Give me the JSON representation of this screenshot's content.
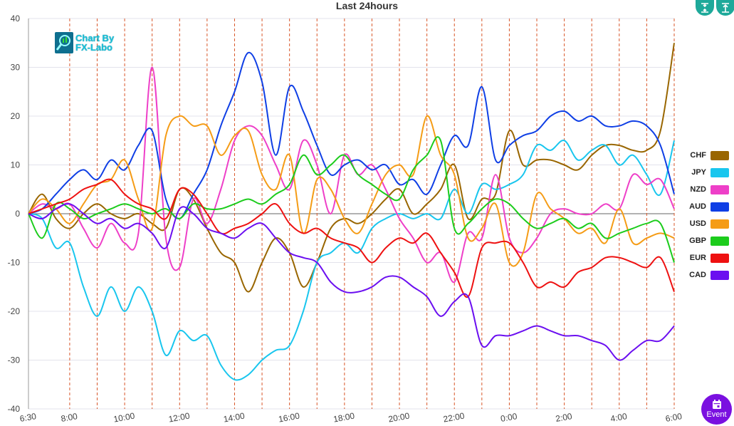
{
  "chart_data": {
    "type": "line",
    "title": "Last 24hours",
    "ylim": [
      -40,
      40
    ],
    "yticks": [
      40,
      30,
      20,
      10,
      0,
      -10,
      -20,
      -30,
      -40
    ],
    "xlim": [
      0,
      23.5
    ],
    "xticks": [
      {
        "x": 0,
        "label": "6:30"
      },
      {
        "x": 1.5,
        "label": "8:00"
      },
      {
        "x": 3.5,
        "label": "10:00"
      },
      {
        "x": 5.5,
        "label": "12:00"
      },
      {
        "x": 7.5,
        "label": "14:00"
      },
      {
        "x": 9.5,
        "label": "16:00"
      },
      {
        "x": 11.5,
        "label": "18:00"
      },
      {
        "x": 13.5,
        "label": "20:00"
      },
      {
        "x": 15.5,
        "label": "22:00"
      },
      {
        "x": 17.5,
        "label": "0:00"
      },
      {
        "x": 19.5,
        "label": "2:00"
      },
      {
        "x": 21.5,
        "label": "4:00"
      },
      {
        "x": 23.5,
        "label": "6:00"
      }
    ],
    "vlines": [
      1.5,
      2.5,
      3.5,
      4.5,
      5.5,
      6.5,
      7.5,
      8.5,
      9.5,
      10.5,
      11.5,
      12.5,
      13.5,
      14.5,
      15.5,
      16.5,
      17.5,
      18.5,
      19.5,
      20.5,
      21.5,
      22.5,
      23.5
    ],
    "grid": true,
    "legend_position": "right",
    "series": [
      {
        "name": "CHF",
        "color": "#996600",
        "x": [
          0,
          0.5,
          1,
          1.5,
          2,
          2.5,
          3,
          3.5,
          4,
          4.5,
          5,
          5.5,
          6,
          6.5,
          7,
          7.5,
          8,
          8.5,
          9,
          9.5,
          10,
          10.5,
          11,
          11.5,
          12,
          12.5,
          13,
          13.5,
          14,
          14.5,
          15,
          15.5,
          16,
          16.5,
          17,
          17.5,
          18,
          18.5,
          19,
          19.5,
          20,
          20.5,
          21,
          21.5,
          22,
          22.5,
          23,
          23.5
        ],
        "y": [
          0,
          4,
          -1,
          -3,
          0,
          2,
          0,
          -1,
          0,
          -2,
          -3,
          5,
          3,
          -3,
          -8,
          -10,
          -16,
          -10,
          -5,
          -8,
          -15,
          -10,
          -3,
          -1,
          -2,
          0,
          3,
          5,
          0,
          2,
          5,
          10,
          -1,
          3,
          4,
          17,
          10,
          11,
          11,
          10,
          9,
          12,
          14,
          14,
          13,
          13,
          17,
          35
        ]
      },
      {
        "name": "JPY",
        "color": "#19c6ee",
        "x": [
          0,
          0.5,
          1,
          1.5,
          2,
          2.5,
          3,
          3.5,
          4,
          4.5,
          5,
          5.5,
          6,
          6.5,
          7,
          7.5,
          8,
          8.5,
          9,
          9.5,
          10,
          10.5,
          11,
          11.5,
          12,
          12.5,
          13,
          13.5,
          14,
          14.5,
          15,
          15.5,
          16,
          16.5,
          17,
          17.5,
          18,
          18.5,
          19,
          19.5,
          20,
          20.5,
          21,
          21.5,
          22,
          22.5,
          23,
          23.5
        ],
        "y": [
          0,
          -1,
          -7,
          -6,
          -15,
          -21,
          -15,
          -20,
          -15,
          -20,
          -29,
          -24,
          -26,
          -25,
          -31,
          -34,
          -33,
          -30,
          -28,
          -27,
          -20,
          -10,
          -8,
          -6,
          -8,
          -3,
          -1,
          0,
          -1,
          0,
          -1,
          5,
          0,
          6,
          5,
          6,
          8,
          14,
          13,
          15,
          11,
          13,
          14,
          10,
          12,
          8,
          4,
          15
        ]
      },
      {
        "name": "NZD",
        "color": "#ee3fc8",
        "x": [
          0,
          0.5,
          1,
          1.5,
          2,
          2.5,
          3,
          3.5,
          4,
          4.5,
          5,
          5.5,
          6,
          6.5,
          7,
          7.5,
          8,
          8.5,
          9,
          9.5,
          10,
          10.5,
          11,
          11.5,
          12,
          12.5,
          13,
          13.5,
          14,
          14.5,
          15,
          15.5,
          16,
          16.5,
          17,
          17.5,
          18,
          18.5,
          19,
          19.5,
          20,
          20.5,
          21,
          21.5,
          22,
          22.5,
          23,
          23.5
        ],
        "y": [
          0,
          2,
          1,
          2,
          -3,
          -7,
          -2,
          -6,
          -4,
          30,
          -5,
          -11,
          3,
          -2,
          5,
          15,
          18,
          16,
          10,
          5,
          15,
          10,
          0,
          12,
          8,
          10,
          5,
          -1,
          -5,
          -10,
          -8,
          -14,
          -4,
          -5,
          8,
          -5,
          -8,
          -5,
          0,
          1,
          0,
          0,
          2,
          1,
          8,
          6,
          7,
          1
        ]
      },
      {
        "name": "AUD",
        "color": "#0f3fe5",
        "x": [
          0,
          0.5,
          1,
          1.5,
          2,
          2.5,
          3,
          3.5,
          4,
          4.5,
          5,
          5.5,
          6,
          6.5,
          7,
          7.5,
          8,
          8.5,
          9,
          9.5,
          10,
          10.5,
          11,
          11.5,
          12,
          12.5,
          13,
          13.5,
          14,
          14.5,
          15,
          15.5,
          16,
          16.5,
          17,
          17.5,
          18,
          18.5,
          19,
          19.5,
          20,
          20.5,
          21,
          21.5,
          22,
          22.5,
          23,
          23.5
        ],
        "y": [
          0,
          1,
          4,
          7,
          9,
          7,
          11,
          9,
          14,
          17,
          3,
          -1,
          4,
          9,
          18,
          25,
          33,
          27,
          12,
          26,
          21,
          14,
          8,
          10,
          11,
          9,
          10,
          6,
          7,
          4,
          10,
          16,
          14,
          26,
          11,
          14,
          16,
          17,
          20,
          21,
          19,
          20,
          18,
          18,
          19,
          18,
          14,
          4
        ]
      },
      {
        "name": "USD",
        "color": "#f59c16",
        "x": [
          0,
          0.5,
          1,
          1.5,
          2,
          2.5,
          3,
          3.5,
          4,
          4.5,
          5,
          5.5,
          6,
          6.5,
          7,
          7.5,
          8,
          8.5,
          9,
          9.5,
          10,
          10.5,
          11,
          11.5,
          12,
          12.5,
          13,
          13.5,
          14,
          14.5,
          15,
          15.5,
          16,
          16.5,
          17,
          17.5,
          18,
          18.5,
          19,
          19.5,
          20,
          20.5,
          21,
          21.5,
          22,
          22.5,
          23,
          23.5
        ],
        "y": [
          0,
          3,
          1,
          -2,
          2,
          6,
          7,
          11,
          3,
          -3,
          16,
          20,
          18,
          18,
          12,
          16,
          17,
          8,
          5,
          12,
          -4,
          7,
          5,
          -1,
          -4,
          2,
          8,
          10,
          8,
          20,
          12,
          8,
          -5,
          -3,
          2,
          -10,
          -8,
          4,
          1,
          -1,
          -4,
          -3,
          -6,
          1,
          -6,
          -5,
          -4,
          -5
        ]
      },
      {
        "name": "GBP",
        "color": "#1ccc1c",
        "x": [
          0,
          0.5,
          1,
          1.5,
          2,
          2.5,
          3,
          3.5,
          4,
          4.5,
          5,
          5.5,
          6,
          6.5,
          7,
          7.5,
          8,
          8.5,
          9,
          9.5,
          10,
          10.5,
          11,
          11.5,
          12,
          12.5,
          13,
          13.5,
          14,
          14.5,
          15,
          15.5,
          16,
          16.5,
          17,
          17.5,
          18,
          18.5,
          19,
          19.5,
          20,
          20.5,
          21,
          21.5,
          22,
          22.5,
          23,
          23.5
        ],
        "y": [
          0,
          -5,
          2,
          1,
          -1,
          0,
          1,
          2,
          1,
          0,
          1,
          -1,
          2,
          1,
          1,
          2,
          3,
          2,
          4,
          6,
          12,
          8,
          10,
          12,
          8,
          6,
          4,
          3,
          9,
          12,
          15,
          -3,
          -2,
          1,
          3,
          2,
          -1,
          -3,
          -2,
          -1,
          -3,
          -2,
          -5,
          -4,
          -3,
          -2,
          -2,
          -10
        ]
      },
      {
        "name": "EUR",
        "color": "#ee1111",
        "x": [
          0,
          0.5,
          1,
          1.5,
          2,
          2.5,
          3,
          3.5,
          4,
          4.5,
          5,
          5.5,
          6,
          6.5,
          7,
          7.5,
          8,
          8.5,
          9,
          9.5,
          10,
          10.5,
          11,
          11.5,
          12,
          12.5,
          13,
          13.5,
          14,
          14.5,
          15,
          15.5,
          16,
          16.5,
          17,
          17.5,
          18,
          18.5,
          19,
          19.5,
          20,
          20.5,
          21,
          21.5,
          22,
          22.5,
          23,
          23.5
        ],
        "y": [
          0,
          1,
          2,
          3,
          5,
          6,
          7,
          4,
          2,
          1,
          -1,
          5,
          4,
          0,
          -4,
          -3,
          -2,
          0,
          2,
          -2,
          -4,
          -3,
          -5,
          -6,
          -7,
          -10,
          -7,
          -5,
          -6,
          -4,
          -8,
          -12,
          -17,
          -7,
          -6,
          -6,
          -10,
          -15,
          -14,
          -15,
          -12,
          -11,
          -9,
          -9,
          -10,
          -11,
          -9,
          -16
        ]
      },
      {
        "name": "CAD",
        "color": "#6b0ff0",
        "x": [
          0,
          0.5,
          1,
          1.5,
          2,
          2.5,
          3,
          3.5,
          4,
          4.5,
          5,
          5.5,
          6,
          6.5,
          7,
          7.5,
          8,
          8.5,
          9,
          9.5,
          10,
          10.5,
          11,
          11.5,
          12,
          12.5,
          13,
          13.5,
          14,
          14.5,
          15,
          15.5,
          16,
          16.5,
          17,
          17.5,
          18,
          18.5,
          19,
          19.5,
          20,
          20.5,
          21,
          21.5,
          22,
          22.5,
          23,
          23.5
        ],
        "y": [
          0,
          -1,
          1,
          2,
          0,
          -2,
          -1,
          -3,
          -2,
          -4,
          -7,
          1,
          0,
          -3,
          -4,
          -5,
          -3,
          -2,
          -5,
          -8,
          -9,
          -10,
          -14,
          -16,
          -16,
          -15,
          -13,
          -13,
          -15,
          -17,
          -21,
          -18,
          -17,
          -27,
          -25,
          -25,
          -24,
          -23,
          -24,
          -25,
          -25,
          -26,
          -27,
          -30,
          -28,
          -26,
          -26,
          -23
        ]
      }
    ]
  },
  "logo": {
    "line1": "Chart By",
    "line2": "FX-Labo"
  },
  "buttons": {
    "event_label": "Event"
  },
  "icons": {
    "collapse": "vertical-collapse-icon",
    "expand": "vertical-expand-icon",
    "event": "calendar-icon"
  }
}
